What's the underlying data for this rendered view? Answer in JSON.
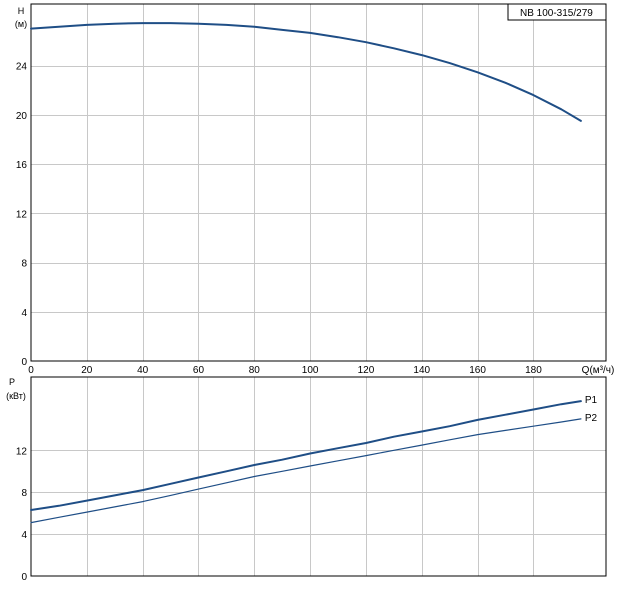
{
  "chart_data": [
    {
      "type": "line",
      "model": "NB 100-315/279",
      "ylabel_line1": "H",
      "ylabel_line2": "(м)",
      "xlabel": "Q(м³/ч)",
      "xlim": [
        0,
        206
      ],
      "ylim": [
        0,
        29
      ],
      "x_ticks": [
        0,
        20,
        40,
        60,
        80,
        100,
        120,
        140,
        160,
        180
      ],
      "y_ticks": [
        0,
        4,
        8,
        12,
        16,
        20,
        24
      ],
      "grid": true,
      "colors": {
        "curve": "#1f4e86",
        "grid": "#c8c8c8",
        "frame": "#000000"
      },
      "series": [
        {
          "x": [
            0,
            10,
            20,
            30,
            40,
            50,
            60,
            70,
            80,
            90,
            100,
            110,
            120,
            130,
            140,
            150,
            160,
            170,
            180,
            190,
            197
          ],
          "values": [
            27.0,
            27.15,
            27.3,
            27.4,
            27.45,
            27.45,
            27.4,
            27.3,
            27.15,
            26.9,
            26.65,
            26.3,
            25.9,
            25.4,
            24.85,
            24.2,
            23.45,
            22.6,
            21.6,
            20.45,
            19.5
          ]
        }
      ]
    },
    {
      "type": "line",
      "ylabel_line1": "P",
      "ylabel_line2": "(кВт)",
      "xlim": [
        0,
        206
      ],
      "ylim": [
        0,
        19
      ],
      "y_ticks": [
        0,
        4,
        8,
        12
      ],
      "x_ticks": [
        0,
        20,
        40,
        60,
        80,
        100,
        120,
        140,
        160,
        180
      ],
      "grid": true,
      "colors": {
        "curve": "#1f4e86",
        "grid": "#c8c8c8",
        "frame": "#000000"
      },
      "series": [
        {
          "name": "P1",
          "x": [
            0,
            10,
            20,
            30,
            40,
            50,
            60,
            70,
            80,
            90,
            100,
            110,
            120,
            130,
            140,
            150,
            160,
            170,
            180,
            190,
            197
          ],
          "values": [
            6.3,
            6.7,
            7.2,
            7.7,
            8.2,
            8.8,
            9.4,
            10.0,
            10.6,
            11.1,
            11.7,
            12.2,
            12.7,
            13.3,
            13.8,
            14.3,
            14.9,
            15.4,
            15.9,
            16.4,
            16.7
          ]
        },
        {
          "name": "P2",
          "x": [
            0,
            10,
            20,
            30,
            40,
            50,
            60,
            70,
            80,
            90,
            100,
            110,
            120,
            130,
            140,
            150,
            160,
            170,
            180,
            190,
            197
          ],
          "values": [
            5.1,
            5.6,
            6.1,
            6.6,
            7.1,
            7.7,
            8.3,
            8.9,
            9.5,
            10.0,
            10.5,
            11.0,
            11.5,
            12.0,
            12.5,
            13.0,
            13.5,
            13.9,
            14.3,
            14.7,
            15.0
          ]
        }
      ]
    }
  ]
}
